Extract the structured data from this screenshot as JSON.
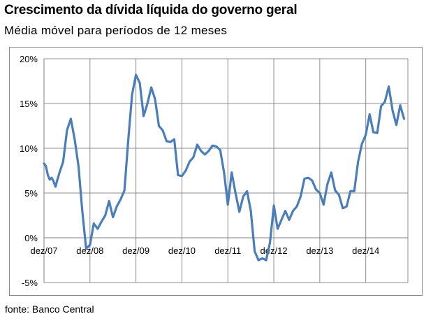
{
  "title": "Crescimento da dívida líquida do governo geral",
  "subtitle": "Média móvel para períodos de 12 meses",
  "source": "fonte: Banco Central",
  "colors": {
    "line": "#4a7ebb",
    "grid": "#8c8c8c",
    "axis": "#808080"
  },
  "chart_data": {
    "type": "line",
    "title": "Crescimento da dívida líquida do governo geral",
    "subtitle": "Média móvel para períodos de 12 meses",
    "xlabel": "",
    "ylabel": "",
    "x_range": [
      0,
      95
    ],
    "ylim": [
      -5,
      20
    ],
    "y_ticks": [
      20,
      15,
      10,
      5,
      0,
      -5
    ],
    "y_tick_labels": [
      "20%",
      "15%",
      "10%",
      "5%",
      "0%",
      "-5%"
    ],
    "x_ticks": [
      0,
      12,
      24,
      36,
      48,
      60,
      72,
      84
    ],
    "x_tick_labels": [
      "dez/07",
      "dez/08",
      "dez/09",
      "dez/10",
      "dez/11",
      "dez/12",
      "dez/13",
      "dez/14"
    ],
    "grid": true,
    "series": [
      {
        "name": "Crescimento da dívida líquida",
        "points": [
          [
            0,
            8.3
          ],
          [
            0.5,
            8.0
          ],
          [
            1,
            7.0
          ],
          [
            1.5,
            6.5
          ],
          [
            2,
            6.7
          ],
          [
            2.5,
            6.3
          ],
          [
            3,
            5.7
          ],
          [
            3.5,
            6.5
          ],
          [
            4,
            7.2
          ],
          [
            5,
            8.5
          ],
          [
            6,
            12.0
          ],
          [
            7,
            13.3
          ],
          [
            8,
            11.0
          ],
          [
            9,
            8.0
          ],
          [
            10,
            3.0
          ],
          [
            11,
            -1.2
          ],
          [
            12,
            -0.8
          ],
          [
            13,
            1.6
          ],
          [
            14,
            1.0
          ],
          [
            15,
            1.8
          ],
          [
            16,
            2.5
          ],
          [
            17,
            4.1
          ],
          [
            18,
            2.3
          ],
          [
            19,
            3.5
          ],
          [
            20,
            4.3
          ],
          [
            21,
            5.3
          ],
          [
            22,
            11.0
          ],
          [
            23,
            16.0
          ],
          [
            24,
            18.2
          ],
          [
            25,
            17.3
          ],
          [
            26,
            13.6
          ],
          [
            27,
            15.0
          ],
          [
            28,
            16.8
          ],
          [
            29,
            15.5
          ],
          [
            30,
            12.5
          ],
          [
            31,
            12.0
          ],
          [
            32,
            10.8
          ],
          [
            33,
            10.7
          ],
          [
            34,
            11.0
          ],
          [
            35,
            7.0
          ],
          [
            36,
            6.9
          ],
          [
            37,
            7.5
          ],
          [
            38,
            8.5
          ],
          [
            39,
            9.0
          ],
          [
            40,
            10.4
          ],
          [
            41,
            9.7
          ],
          [
            42,
            9.3
          ],
          [
            43,
            9.7
          ],
          [
            44,
            10.3
          ],
          [
            45,
            10.2
          ],
          [
            46,
            9.8
          ],
          [
            47,
            7.3
          ],
          [
            48,
            3.7
          ],
          [
            48.5,
            5.5
          ],
          [
            49,
            7.3
          ],
          [
            50,
            5.0
          ],
          [
            51,
            2.9
          ],
          [
            52,
            4.6
          ],
          [
            53,
            5.2
          ],
          [
            54,
            3.0
          ],
          [
            55,
            -1.5
          ],
          [
            56,
            -2.5
          ],
          [
            57,
            -2.3
          ],
          [
            58,
            -2.5
          ],
          [
            59,
            -0.5
          ],
          [
            60,
            3.6
          ],
          [
            61,
            1.0
          ],
          [
            62,
            2.0
          ],
          [
            63,
            3.0
          ],
          [
            64,
            2.0
          ],
          [
            65,
            3.0
          ],
          [
            66,
            3.5
          ],
          [
            67,
            4.6
          ],
          [
            68,
            6.6
          ],
          [
            69,
            6.7
          ],
          [
            70,
            6.4
          ],
          [
            71,
            5.4
          ],
          [
            72,
            5.0
          ],
          [
            73,
            3.7
          ],
          [
            74,
            6.0
          ],
          [
            75,
            7.3
          ],
          [
            76,
            5.3
          ],
          [
            77,
            4.8
          ],
          [
            78,
            3.3
          ],
          [
            79,
            3.5
          ],
          [
            80,
            5.2
          ],
          [
            81,
            5.2
          ],
          [
            82,
            8.5
          ],
          [
            83,
            10.5
          ],
          [
            84,
            11.5
          ],
          [
            85,
            13.8
          ],
          [
            86,
            11.8
          ],
          [
            87,
            11.7
          ],
          [
            88,
            14.7
          ],
          [
            89,
            15.2
          ],
          [
            90,
            16.9
          ],
          [
            91,
            14.2
          ],
          [
            92,
            12.6
          ],
          [
            93,
            14.8
          ],
          [
            94,
            13.3
          ]
        ]
      }
    ]
  }
}
